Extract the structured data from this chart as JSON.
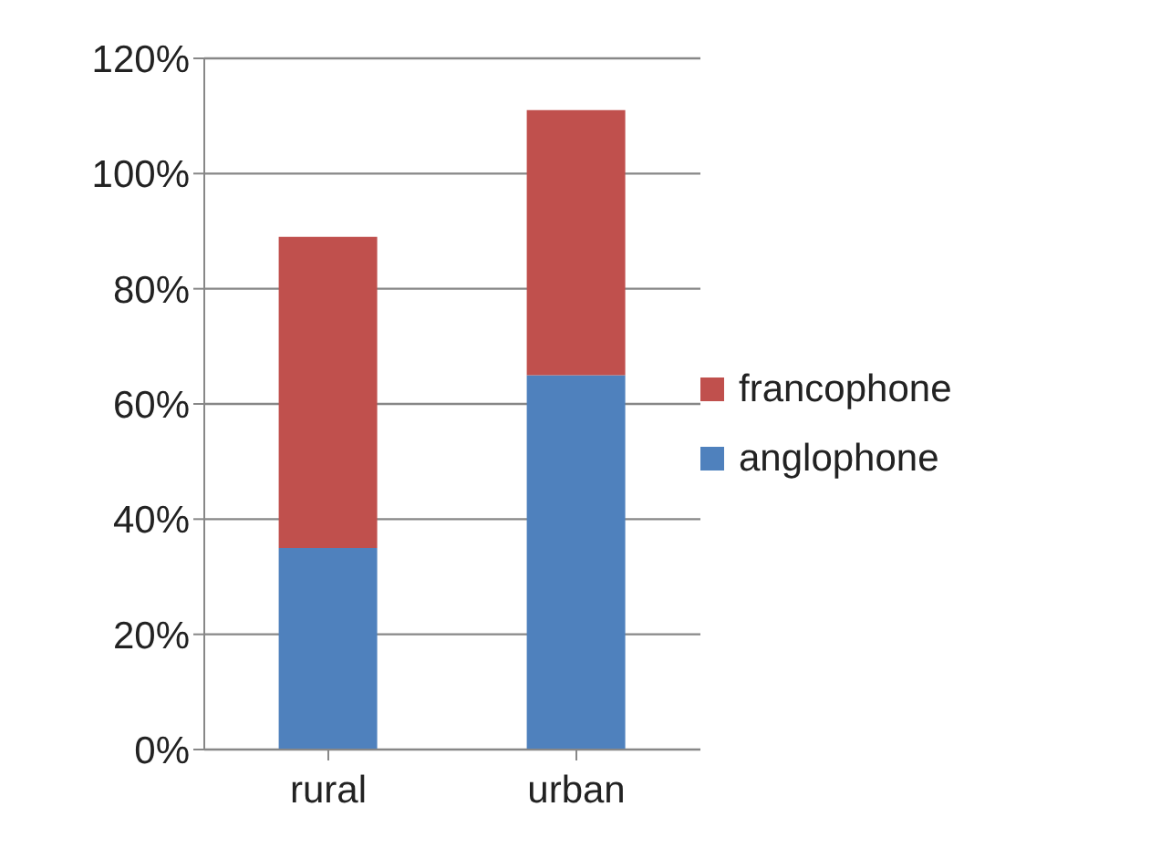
{
  "chart_data": {
    "type": "bar",
    "stacked": true,
    "categories": [
      "rural",
      "urban"
    ],
    "series": [
      {
        "name": "anglophone",
        "color": "#4f81bd",
        "values": [
          35,
          65
        ]
      },
      {
        "name": "francophone",
        "color": "#c0504d",
        "values": [
          54,
          46
        ]
      }
    ],
    "ylim": [
      0,
      120
    ],
    "yticks": [
      {
        "value": 0,
        "label": "0%"
      },
      {
        "value": 20,
        "label": "20%"
      },
      {
        "value": 40,
        "label": "40%"
      },
      {
        "value": 60,
        "label": "60%"
      },
      {
        "value": 80,
        "label": "80%"
      },
      {
        "value": 100,
        "label": "100%"
      },
      {
        "value": 120,
        "label": "120%"
      }
    ],
    "grid": "y",
    "legend": "right"
  }
}
